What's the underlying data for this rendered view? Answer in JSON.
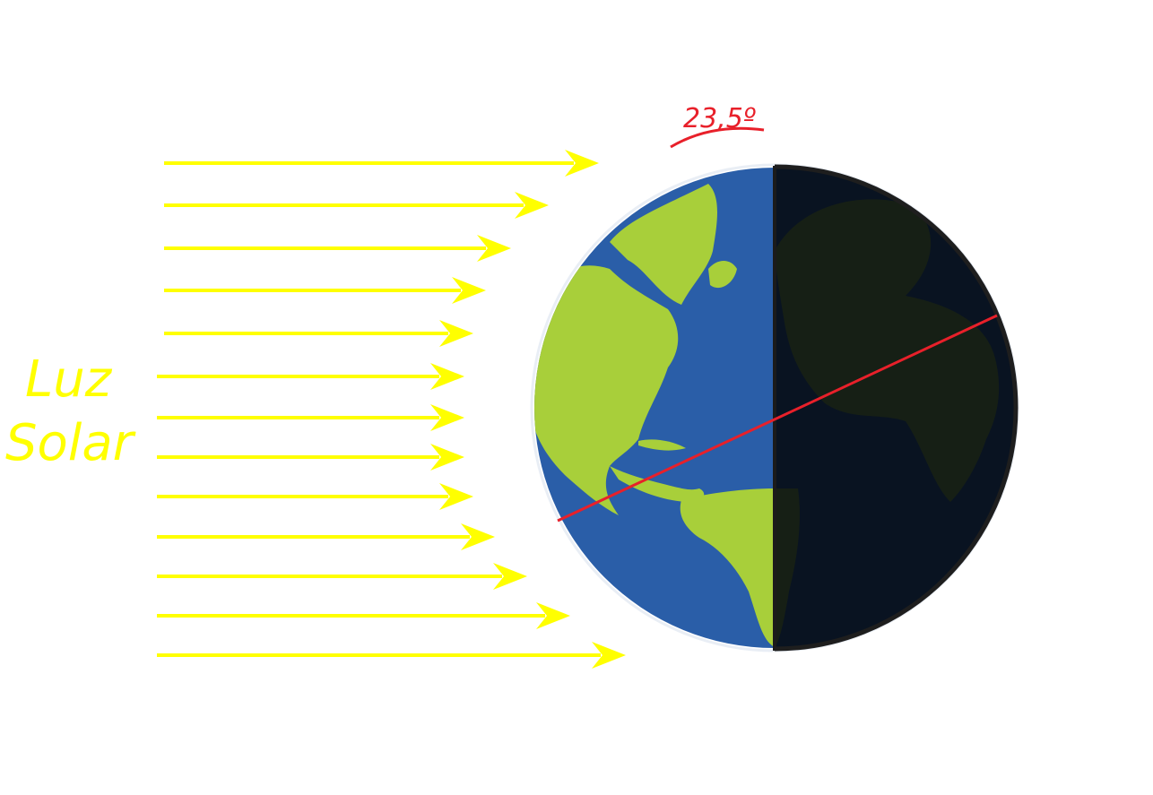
{
  "labels": {
    "sun_line1": "Luz",
    "sun_line2": "Solar",
    "tilt_angle": "23,5º"
  },
  "sun_rays": {
    "count": 13,
    "direction": "left-to-right"
  },
  "colors": {
    "rays": "#ffff00",
    "ocean": "#2a5ea8",
    "land": "#a8cf3a",
    "night": "#060b12",
    "axis": "#e8202a",
    "angle": "#e8202a"
  },
  "icons": {
    "planet": "earth-globe-icon"
  }
}
